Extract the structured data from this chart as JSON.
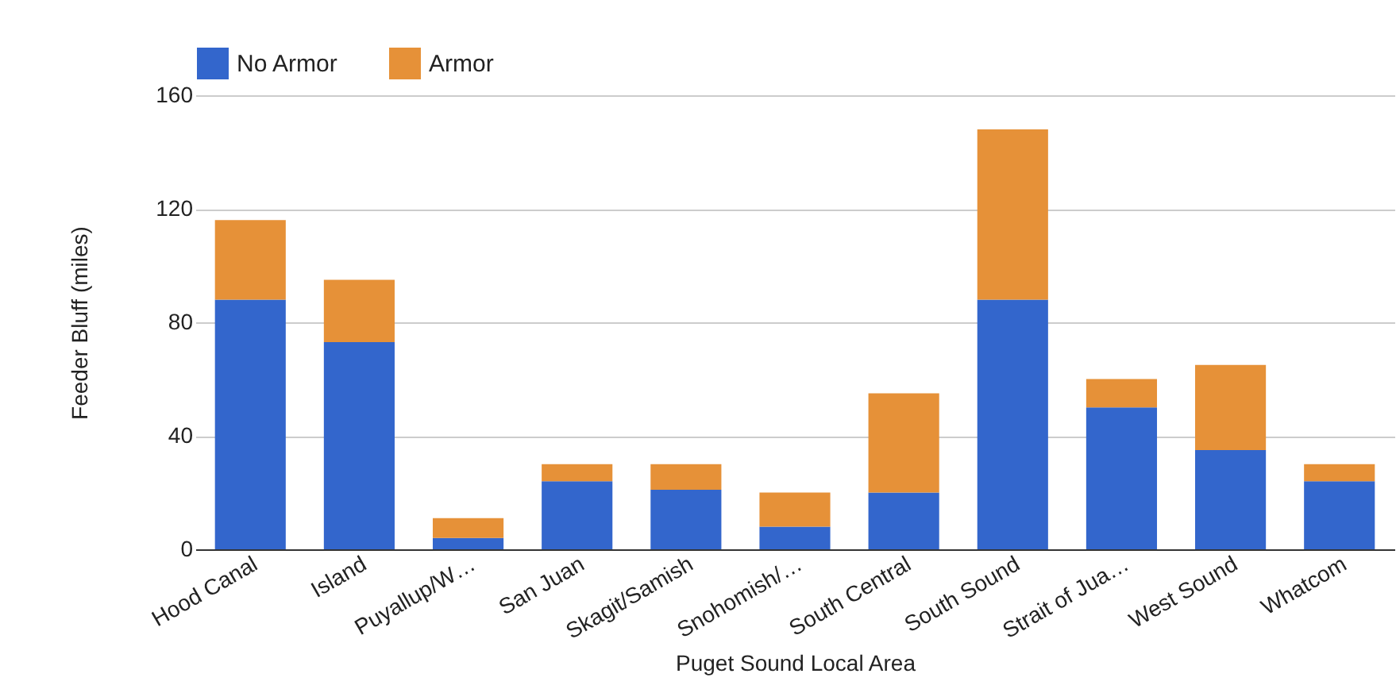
{
  "chart_data": {
    "type": "bar",
    "stacked": true,
    "xlabel": "Puget Sound Local Area",
    "ylabel": "Feeder Bluff (miles)",
    "categories": [
      "Hood Canal",
      "Island",
      "Puyallup/W…",
      "San Juan",
      "Skagit/Samish",
      "Snohomish/…",
      "South Central",
      "South Sound",
      "Strait of Jua…",
      "West Sound",
      "Whatcom"
    ],
    "series": [
      {
        "name": "No Armor",
        "color": "#3366cc",
        "values": [
          88,
          73,
          4,
          24,
          21,
          8,
          20,
          88,
          50,
          35,
          24
        ]
      },
      {
        "name": "Armor",
        "color": "#e69138",
        "values": [
          28,
          22,
          7,
          6,
          9,
          12,
          35,
          60,
          10,
          30,
          6
        ]
      }
    ],
    "ylim": [
      0,
      160
    ],
    "yticks": [
      0,
      40,
      80,
      120,
      160
    ],
    "grid": "y",
    "legend": "top left"
  }
}
